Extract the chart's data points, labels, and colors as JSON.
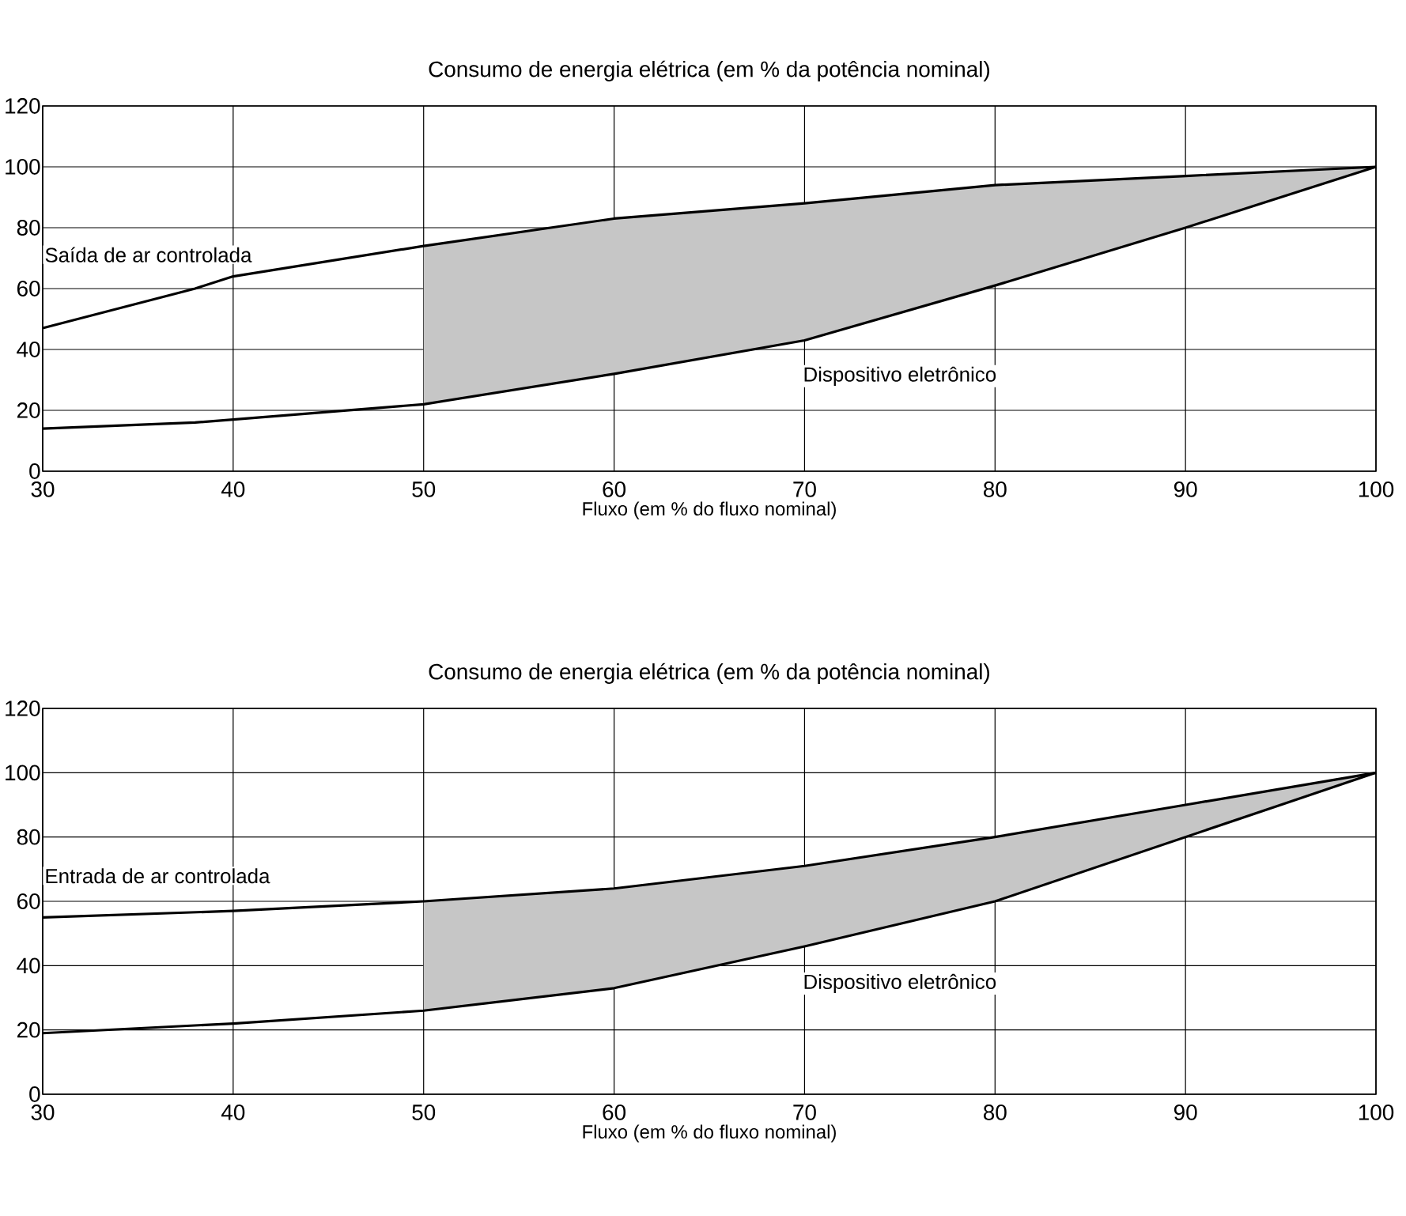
{
  "chart_data": [
    {
      "type": "line",
      "title": "Consumo de energia elétrica  (em % da potência nominal)",
      "xlabel": "Fluxo (em % do fluxo nominal)",
      "x": [
        30,
        38,
        40,
        50,
        60,
        70,
        80,
        90,
        100
      ],
      "series": [
        {
          "name": "Saída de ar controlada",
          "color": "#000000",
          "values": [
            47,
            60,
            64,
            74,
            83,
            88,
            94,
            97,
            100
          ],
          "lower": [
            null,
            null,
            null,
            22,
            32,
            43,
            61,
            80,
            100
          ],
          "upper": [
            null,
            null,
            null,
            74,
            83,
            88,
            94,
            97,
            100
          ]
        },
        {
          "name": "Dispositivo eletrônico",
          "color": "#000000",
          "values": [
            14,
            16,
            17,
            22,
            32,
            43,
            61,
            80,
            100
          ]
        }
      ],
      "xlim": [
        30,
        100
      ],
      "ylim": [
        0,
        120
      ],
      "xticks": [
        30,
        40,
        50,
        60,
        70,
        80,
        90,
        100
      ],
      "yticks": [
        0,
        20,
        40,
        60,
        80,
        100,
        120
      ],
      "grid": true
    },
    {
      "type": "line",
      "title": "Consumo de energia elétrica  (em % da potência nominal)",
      "xlabel": "Fluxo (em % do fluxo nominal)",
      "x": [
        30,
        40,
        50,
        60,
        70,
        80,
        90,
        100
      ],
      "series": [
        {
          "name": "Entrada de ar controlada",
          "color": "#000000",
          "values": [
            55,
            57,
            60,
            64,
            71,
            80,
            90,
            100
          ],
          "lower": [
            null,
            null,
            26,
            33,
            46,
            60,
            80,
            100
          ],
          "upper": [
            null,
            null,
            60,
            64,
            71,
            80,
            90,
            100
          ]
        },
        {
          "name": "Dispositivo eletrônico",
          "color": "#000000",
          "values": [
            19,
            22,
            26,
            33,
            46,
            60,
            80,
            100
          ]
        }
      ],
      "xlim": [
        30,
        100
      ],
      "ylim": [
        0,
        120
      ],
      "xticks": [
        30,
        40,
        50,
        60,
        70,
        80,
        90,
        100
      ],
      "yticks": [
        0,
        20,
        40,
        60,
        80,
        100,
        120
      ],
      "grid": true
    }
  ]
}
